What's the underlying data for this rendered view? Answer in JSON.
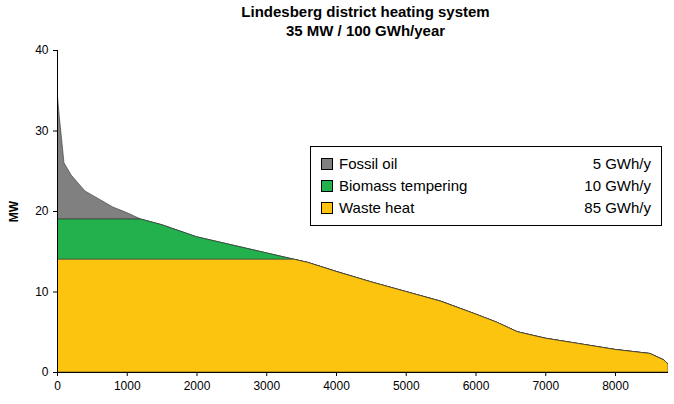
{
  "chart_data": {
    "type": "area",
    "title": "Lindesberg district heating system",
    "subtitle": "35 MW / 100 GWh/year",
    "y_label": "MW",
    "x": [
      0,
      30,
      100,
      200,
      400,
      600,
      800,
      1000,
      1200,
      1500,
      2000,
      2500,
      3000,
      3400,
      3600,
      4000,
      4500,
      5000,
      5500,
      6000,
      6300,
      6600,
      7000,
      7500,
      8000,
      8500,
      8700,
      8760
    ],
    "series": [
      {
        "name": "Fossil oil",
        "annotation": "5 GWh/y",
        "color": "#808080",
        "values": [
          16,
          13,
          7,
          5.5,
          3.5,
          2.5,
          1.5,
          0.8,
          0,
          0,
          0,
          0,
          0,
          0,
          0,
          0,
          0,
          0,
          0,
          0,
          0,
          0,
          0,
          0,
          0,
          0,
          0,
          0
        ]
      },
      {
        "name": "Biomass tempering",
        "annotation": "10 GWh/y",
        "color": "#22b14c",
        "values": [
          5,
          5,
          5,
          5,
          5,
          5,
          5,
          5,
          5,
          4.3,
          2.8,
          1.8,
          0.8,
          0,
          0,
          0,
          0,
          0,
          0,
          0,
          0,
          0,
          0,
          0,
          0,
          0,
          0,
          0
        ]
      },
      {
        "name": "Waste heat",
        "annotation": "85 GWh/y",
        "color": "#fdc40f",
        "values": [
          14,
          14,
          14,
          14,
          14,
          14,
          14,
          14,
          14,
          14,
          14,
          14,
          14,
          14,
          13.6,
          12.5,
          11.2,
          10,
          8.8,
          7.2,
          6.2,
          5,
          4.2,
          3.5,
          2.8,
          2.3,
          1.5,
          1
        ]
      }
    ],
    "stacked": true,
    "legend": "upper-right",
    "xlim": [
      0,
      8760
    ],
    "xticks": [
      0,
      1000,
      2000,
      3000,
      4000,
      5000,
      6000,
      7000,
      8000
    ],
    "ylim": [
      0,
      40
    ],
    "yticks": [
      0,
      10,
      20,
      30,
      40
    ]
  }
}
